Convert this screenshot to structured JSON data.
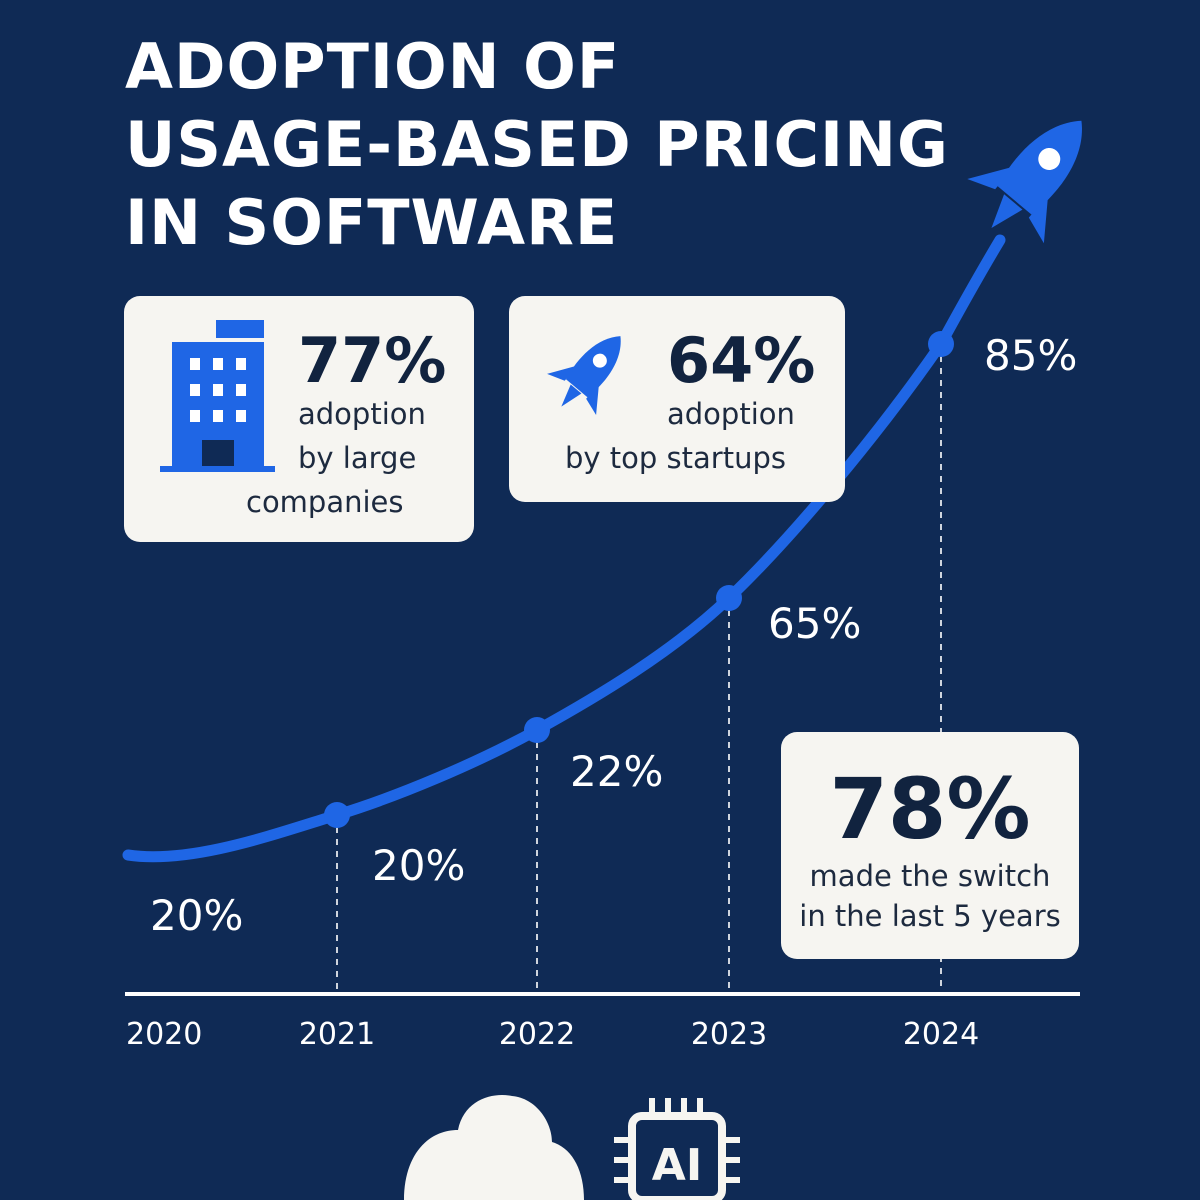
{
  "title_lines": [
    "ADOPTION OF",
    "USAGE-BASED PRICING",
    "IN SOFTWARE"
  ],
  "stats": {
    "large": {
      "value": "77%",
      "line1": "adoption",
      "line2": "by large",
      "line3": "companies",
      "icon": "office-building-icon"
    },
    "startups": {
      "value": "64%",
      "line1": "adoption",
      "line2": "by top startups",
      "icon": "rocket-icon"
    },
    "switch": {
      "value": "78%",
      "line1": "made the switch",
      "line2": "in the last 5 years"
    }
  },
  "chart_data": {
    "type": "line",
    "categories": [
      "2020",
      "2021",
      "2022",
      "2023",
      "2024"
    ],
    "values": [
      20,
      20,
      22,
      65,
      85
    ],
    "labels": [
      "20%",
      "20%",
      "22%",
      "65%",
      "85%"
    ],
    "title": "ADOPTION OF USAGE-BASED PRICING IN SOFTWARE",
    "xlabel": "",
    "ylabel": "",
    "grid": false,
    "line_color": "#1f66e5"
  },
  "bottom_icons": {
    "cloud": "cloud-icon",
    "chip_label": "AI"
  },
  "colors": {
    "background": "#0f2a55",
    "accent": "#1f66e5",
    "card": "#f6f5f1",
    "text_dark": "#11233f"
  }
}
